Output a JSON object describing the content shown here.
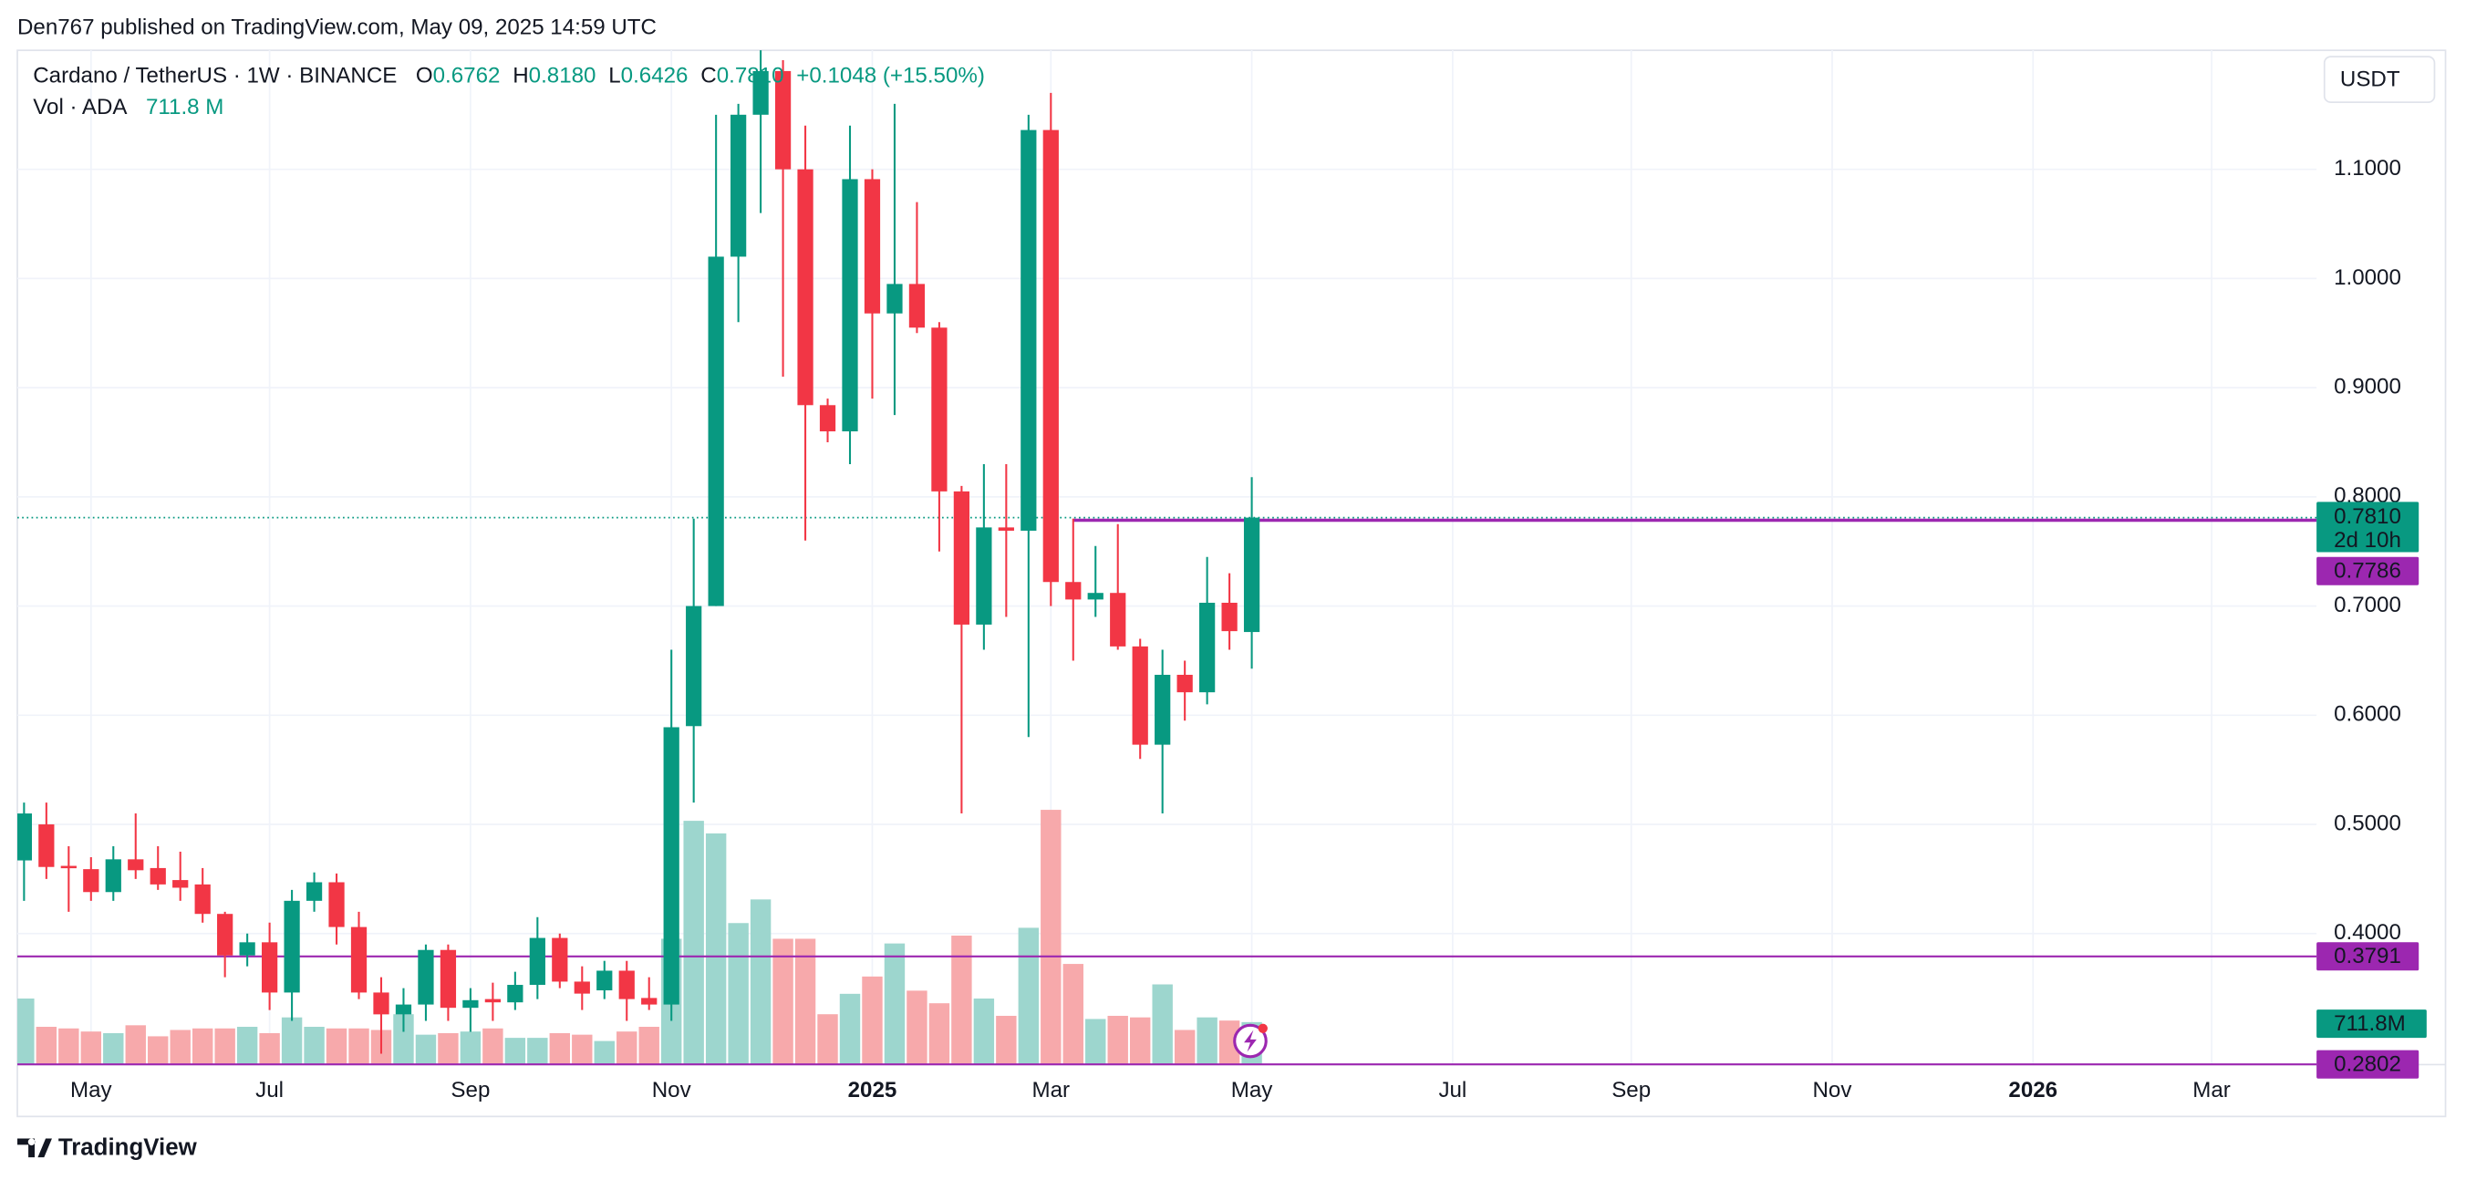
{
  "header": {
    "byline": "Den767 published on TradingView.com, May 09, 2025 14:59 UTC"
  },
  "footer": {
    "brand": "TradingView"
  },
  "chart_data": {
    "type": "candlestick",
    "title": "Cardano / TetherUS · 1W · BINANCE",
    "ohlc_keys": [
      "O",
      "H",
      "L",
      "C"
    ],
    "ohlc_labels": [
      "0.6762",
      "0.8180",
      "0.6426",
      "0.7810"
    ],
    "change_label": "+0.1048 (+15.50%)",
    "currency": "USDT",
    "up_color": "#089981",
    "down_color": "#f23645",
    "open": [
      0.467,
      0.5,
      0.462,
      0.459,
      0.438,
      0.468,
      0.46,
      0.449,
      0.445,
      0.418,
      0.38,
      0.392,
      0.346,
      0.43,
      0.447,
      0.406,
      0.346,
      0.326,
      0.335,
      0.385,
      0.332,
      0.34,
      0.337,
      0.353,
      0.396,
      0.356,
      0.348,
      0.366,
      0.341,
      0.335,
      0.59,
      0.7,
      1.02,
      1.15,
      1.19,
      1.1,
      0.884,
      0.86,
      1.091,
      0.968,
      0.995,
      0.955,
      0.805,
      0.683,
      0.772,
      0.769,
      1.136,
      0.722,
      0.706,
      0.712,
      0.663,
      0.573,
      0.637,
      0.621,
      0.703,
      0.6762
    ],
    "high": [
      0.52,
      0.52,
      0.48,
      0.47,
      0.48,
      0.51,
      0.48,
      0.475,
      0.46,
      0.42,
      0.4,
      0.41,
      0.44,
      0.456,
      0.455,
      0.42,
      0.36,
      0.35,
      0.39,
      0.39,
      0.35,
      0.355,
      0.365,
      0.415,
      0.4,
      0.37,
      0.375,
      0.375,
      0.36,
      0.66,
      0.78,
      1.15,
      1.16,
      1.21,
      1.2,
      1.14,
      0.89,
      1.14,
      1.1,
      1.16,
      1.07,
      0.96,
      0.81,
      0.83,
      0.83,
      1.15,
      1.17,
      0.78,
      0.755,
      0.775,
      0.67,
      0.66,
      0.65,
      0.745,
      0.73,
      0.818
    ],
    "low": [
      0.43,
      0.45,
      0.42,
      0.43,
      0.43,
      0.45,
      0.44,
      0.43,
      0.41,
      0.36,
      0.37,
      0.33,
      0.32,
      0.42,
      0.39,
      0.34,
      0.29,
      0.31,
      0.32,
      0.32,
      0.31,
      0.32,
      0.33,
      0.34,
      0.35,
      0.33,
      0.34,
      0.32,
      0.33,
      0.32,
      0.52,
      0.7,
      0.96,
      1.06,
      0.91,
      0.76,
      0.85,
      0.83,
      0.89,
      0.875,
      0.95,
      0.75,
      0.51,
      0.66,
      0.69,
      0.58,
      0.7,
      0.65,
      0.69,
      0.66,
      0.56,
      0.51,
      0.595,
      0.61,
      0.66,
      0.6426
    ],
    "close": [
      0.51,
      0.461,
      0.46,
      0.438,
      0.468,
      0.458,
      0.445,
      0.442,
      0.418,
      0.38,
      0.392,
      0.346,
      0.43,
      0.447,
      0.406,
      0.346,
      0.326,
      0.335,
      0.385,
      0.332,
      0.339,
      0.337,
      0.353,
      0.396,
      0.356,
      0.345,
      0.366,
      0.34,
      0.335,
      0.589,
      0.7,
      1.02,
      1.15,
      1.19,
      1.1,
      0.884,
      0.86,
      1.091,
      0.968,
      0.995,
      0.955,
      0.805,
      0.683,
      0.772,
      0.769,
      1.136,
      0.722,
      0.706,
      0.712,
      0.663,
      0.573,
      0.637,
      0.621,
      0.703,
      0.677,
      0.781
    ],
    "volume": {
      "name": "Vol · ADA",
      "values": [
        1107,
        633,
        606,
        554,
        527,
        659,
        474,
        580,
        606,
        606,
        633,
        527,
        791,
        633,
        606,
        606,
        580,
        844,
        501,
        527,
        554,
        606,
        448,
        448,
        527,
        501,
        395,
        554,
        633,
        2109,
        4086,
        3875,
        2372,
        2768,
        2109,
        2109,
        844,
        1186,
        1476,
        2030,
        1239,
        1028,
        2162,
        1107,
        817,
        2293,
        4270,
        1687,
        764,
        817,
        791,
        1344,
        580,
        791,
        738,
        711.8
      ],
      "value_label": "711.8 M",
      "axis_label": "711.8M",
      "up_color": "#9dd6ce",
      "down_color": "#f7a9ab"
    },
    "last_price": {
      "value": 0.781,
      "label": "0.7810",
      "countdown": "2d 10h"
    },
    "levels": [
      {
        "value": 0.7786,
        "label": "0.7786",
        "color": "#9c27b0",
        "x_from": 47
      },
      {
        "value": 0.3791,
        "label": "0.3791",
        "color": "#9c27b0"
      },
      {
        "value": 0.2802,
        "label": "0.2802",
        "color": "#9c27b0"
      }
    ],
    "xlim": [
      -0.3,
      102.7
    ],
    "xticks": [
      {
        "value": 3,
        "label": "May"
      },
      {
        "value": 11,
        "label": "Jul"
      },
      {
        "value": 20,
        "label": "Sep"
      },
      {
        "value": 29,
        "label": "Nov"
      },
      {
        "value": 38,
        "label": "2025"
      },
      {
        "value": 46,
        "label": "Mar"
      },
      {
        "value": 55,
        "label": "May"
      },
      {
        "value": 64,
        "label": "Jul"
      },
      {
        "value": 72,
        "label": "Sep"
      },
      {
        "value": 81,
        "label": "Nov"
      },
      {
        "value": 90,
        "label": "2026"
      },
      {
        "value": 98,
        "label": "Mar"
      }
    ],
    "ylim": [
      0.28,
      1.209
    ],
    "yticks": [
      {
        "value": 0.4,
        "label": "0.4000"
      },
      {
        "value": 0.5,
        "label": "0.5000"
      },
      {
        "value": 0.6,
        "label": "0.6000"
      },
      {
        "value": 0.7,
        "label": "0.7000"
      },
      {
        "value": 0.8,
        "label": "0.8000"
      },
      {
        "value": 0.9,
        "label": "0.9000"
      },
      {
        "value": 1.0,
        "label": "1.0000"
      },
      {
        "value": 1.1,
        "label": "1.1000"
      }
    ],
    "grid": true
  }
}
